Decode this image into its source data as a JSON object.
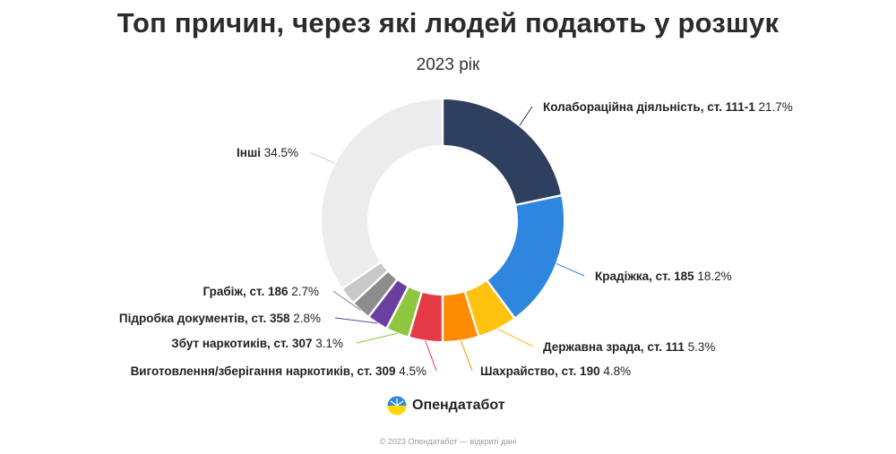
{
  "chart_data": {
    "type": "pie",
    "variant": "donut",
    "title": "Топ причин, через які людей подають у розшук",
    "subtitle": "2023 рік",
    "slices": [
      {
        "label": "Колабораційна діяльність, ст. 111-1",
        "value": 21.7,
        "value_label": "21.7%",
        "color": "#2e3f5f"
      },
      {
        "label": "Крадіжка, ст. 185",
        "value": 18.2,
        "value_label": "18.2%",
        "color": "#2f86de"
      },
      {
        "label": "Державна зрада, ст. 111",
        "value": 5.3,
        "value_label": "5.3%",
        "color": "#ffc20e"
      },
      {
        "label": "Шахрайство, ст. 190",
        "value": 4.8,
        "value_label": "4.8%",
        "color": "#ff8c00"
      },
      {
        "label": "Виготовлення/зберігання наркотиків, ст. 309",
        "value": 4.5,
        "value_label": "4.5%",
        "color": "#e63946"
      },
      {
        "label": "Збут наркотиків, ст. 307",
        "value": 3.1,
        "value_label": "3.1%",
        "color": "#8dc63f"
      },
      {
        "label": "Підробка документів, ст. 358",
        "value": 2.8,
        "value_label": "2.8%",
        "color": "#6b3fa0"
      },
      {
        "label": "Грабіж, ст. 186",
        "value": 2.7,
        "value_label": "2.7%",
        "color": "#8c8c8c"
      },
      {
        "label": "",
        "value": 2.4,
        "value_label": "",
        "color": "#c8c8c8"
      },
      {
        "label": "Інші",
        "value": 34.5,
        "value_label": "34.5%",
        "color": "#ececec"
      }
    ]
  },
  "brand": {
    "name": "Опендатабот"
  },
  "footer": {
    "text": "© 2023 Опендатабот — відкриті дані"
  }
}
